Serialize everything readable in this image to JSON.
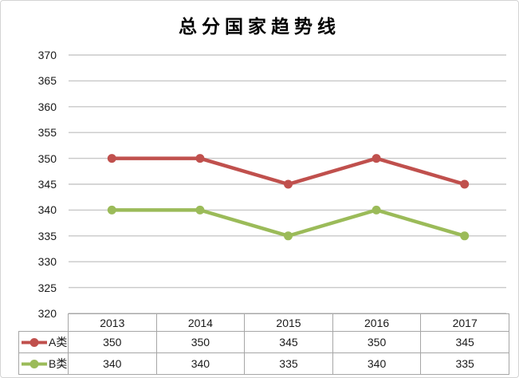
{
  "chart_data": {
    "type": "line",
    "title": "总分国家趋势线",
    "categories": [
      "2013",
      "2014",
      "2015",
      "2016",
      "2017"
    ],
    "series": [
      {
        "name": "A类",
        "color": "#c0504d",
        "values": [
          350,
          350,
          345,
          350,
          345
        ]
      },
      {
        "name": "B类",
        "color": "#9bbb59",
        "values": [
          340,
          340,
          335,
          340,
          335
        ]
      }
    ],
    "xlabel": "",
    "ylabel": "",
    "ylim": [
      320,
      370
    ],
    "y_step": 5,
    "y_ticks": [
      "370",
      "365",
      "360",
      "355",
      "350",
      "345",
      "340",
      "335",
      "330",
      "325",
      "320"
    ],
    "grid": true,
    "legend_position": "data-table-left",
    "data_table_shown": true
  },
  "colors": {
    "series_a": "#c0504d",
    "series_b": "#9bbb59",
    "gridline": "#c8c8c8",
    "table_border": "#a6a6a6",
    "frame": "#d3d3d3",
    "text": "#1a1a1a",
    "background": "#ffffff"
  }
}
